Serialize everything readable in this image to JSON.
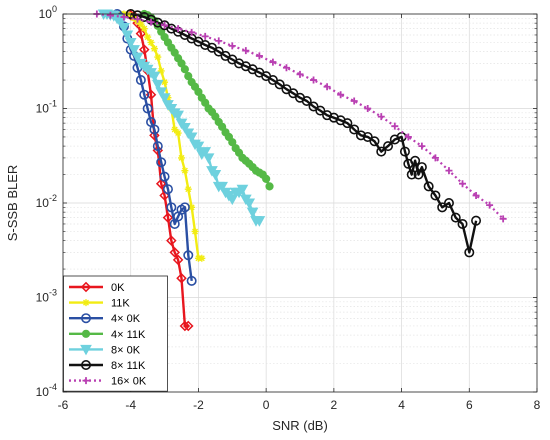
{
  "chart_data": {
    "type": "line",
    "xlabel": "SNR (dB)",
    "ylabel": "S-SSB BLER",
    "xlim": [
      -6,
      8
    ],
    "ylim": [
      0.0001,
      1
    ],
    "y_scale": "log",
    "grid": true,
    "legend_location": "bottom-left",
    "x_ticks": [
      "-6",
      "-4",
      "-2",
      "0",
      "2",
      "4",
      "6",
      "8"
    ],
    "y_ticks": [
      {
        "value": 1,
        "label": "10^0"
      },
      {
        "value": 0.1,
        "label": "10^-1"
      },
      {
        "value": 0.01,
        "label": "10^-2"
      },
      {
        "value": 0.001,
        "label": "10^-3"
      },
      {
        "value": 0.0001,
        "label": "10^-4"
      }
    ],
    "series": [
      {
        "name": "0K",
        "color": "#e8161e",
        "marker": "diamond",
        "dashed": false,
        "x": [
          -4.0,
          -3.9,
          -3.8,
          -3.7,
          -3.6,
          -3.5,
          -3.4,
          -3.3,
          -3.2,
          -3.1,
          -3.0,
          -2.9,
          -2.8,
          -2.7,
          -2.6,
          -2.5,
          -2.4,
          -2.3
        ],
        "y": [
          0.97,
          0.95,
          0.8,
          0.62,
          0.42,
          0.25,
          0.14,
          0.052,
          0.036,
          0.016,
          0.012,
          0.007,
          0.004,
          0.003,
          0.0025,
          0.0016,
          0.0005,
          0.0005
        ]
      },
      {
        "name": "11K",
        "color": "#f2ec12",
        "marker": "asterisk",
        "dashed": false,
        "x": [
          -4.3,
          -4.2,
          -4.1,
          -4.0,
          -3.9,
          -3.8,
          -3.7,
          -3.6,
          -3.5,
          -3.4,
          -3.3,
          -3.2,
          -3.1,
          -3.0,
          -2.9,
          -2.8,
          -2.7,
          -2.6,
          -2.5,
          -2.4,
          -2.3,
          -2.2,
          -2.1,
          -2.0,
          -1.9
        ],
        "y": [
          1,
          1,
          0.98,
          0.96,
          0.9,
          0.84,
          0.78,
          0.7,
          0.57,
          0.5,
          0.43,
          0.35,
          0.25,
          0.19,
          0.13,
          0.1,
          0.06,
          0.055,
          0.03,
          0.022,
          0.014,
          0.009,
          0.005,
          0.0026,
          0.0026
        ]
      },
      {
        "name": "4× 0K",
        "color": "#2a4fa3",
        "marker": "circle",
        "dashed": false,
        "x": [
          -4.4,
          -4.3,
          -4.2,
          -4.1,
          -4.0,
          -3.9,
          -3.8,
          -3.7,
          -3.6,
          -3.5,
          -3.4,
          -3.3,
          -3.2,
          -3.1,
          -3.0,
          -2.9,
          -2.8,
          -2.7,
          -2.6,
          -2.5,
          -2.4,
          -2.3,
          -2.2
        ],
        "y": [
          1,
          0.92,
          0.74,
          0.55,
          0.42,
          0.36,
          0.27,
          0.2,
          0.14,
          0.1,
          0.072,
          0.06,
          0.04,
          0.027,
          0.019,
          0.014,
          0.009,
          0.006,
          0.0072,
          0.0085,
          0.009,
          0.0028,
          0.0015
        ]
      },
      {
        "name": "4× 11K",
        "color": "#55b946",
        "marker": "dot",
        "dashed": false,
        "x": [
          -3.6,
          -3.5,
          -3.4,
          -3.3,
          -3.2,
          -3.1,
          -3.0,
          -2.9,
          -2.8,
          -2.7,
          -2.6,
          -2.5,
          -2.4,
          -2.3,
          -2.2,
          -2.1,
          -2.0,
          -1.9,
          -1.8,
          -1.7,
          -1.6,
          -1.5,
          -1.4,
          -1.3,
          -1.2,
          -1.1,
          -1.0,
          -0.9,
          -0.8,
          -0.7,
          -0.6,
          -0.5,
          -0.4,
          -0.3,
          -0.2,
          -0.1,
          0.0,
          0.1
        ],
        "y": [
          1,
          0.97,
          0.92,
          0.85,
          0.75,
          0.65,
          0.57,
          0.5,
          0.44,
          0.39,
          0.34,
          0.3,
          0.26,
          0.22,
          0.19,
          0.17,
          0.15,
          0.13,
          0.115,
          0.1,
          0.092,
          0.082,
          0.072,
          0.064,
          0.056,
          0.05,
          0.044,
          0.038,
          0.034,
          0.03,
          0.028,
          0.026,
          0.024,
          0.022,
          0.021,
          0.02,
          0.018,
          0.015
        ]
      },
      {
        "name": "8× 0K",
        "color": "#6ed1de",
        "marker": "triangle-down",
        "dashed": false,
        "x": [
          -4.8,
          -4.7,
          -4.6,
          -4.5,
          -4.4,
          -4.3,
          -4.2,
          -4.1,
          -4.0,
          -3.9,
          -3.8,
          -3.7,
          -3.6,
          -3.5,
          -3.4,
          -3.3,
          -3.2,
          -3.1,
          -3.0,
          -2.9,
          -2.8,
          -2.7,
          -2.6,
          -2.5,
          -2.4,
          -2.3,
          -2.2,
          -2.1,
          -2.0,
          -1.9,
          -1.8,
          -1.7,
          -1.6,
          -1.5,
          -1.4,
          -1.3,
          -1.2,
          -1.1,
          -1.0,
          -0.9,
          -0.8,
          -0.7,
          -0.6,
          -0.5,
          -0.4,
          -0.3,
          -0.2
        ],
        "y": [
          1,
          1,
          0.98,
          0.96,
          0.9,
          0.82,
          0.72,
          0.6,
          0.5,
          0.42,
          0.35,
          0.3,
          0.28,
          0.26,
          0.24,
          0.22,
          0.18,
          0.15,
          0.13,
          0.11,
          0.1,
          0.09,
          0.085,
          0.07,
          0.063,
          0.055,
          0.05,
          0.042,
          0.04,
          0.033,
          0.035,
          0.03,
          0.022,
          0.02,
          0.015,
          0.015,
          0.013,
          0.012,
          0.011,
          0.013,
          0.013,
          0.014,
          0.011,
          0.01,
          0.008,
          0.0065,
          0.0065
        ]
      },
      {
        "name": "8× 11K",
        "color": "#111111",
        "marker": "circle",
        "dashed": false,
        "x": [
          -4.0,
          -3.8,
          -3.6,
          -3.4,
          -3.2,
          -3.0,
          -2.8,
          -2.6,
          -2.4,
          -2.2,
          -2.0,
          -1.8,
          -1.6,
          -1.4,
          -1.2,
          -1.0,
          -0.8,
          -0.6,
          -0.4,
          -0.2,
          0.0,
          0.2,
          0.4,
          0.6,
          0.8,
          1.0,
          1.2,
          1.4,
          1.6,
          1.8,
          2.0,
          2.2,
          2.4,
          2.6,
          2.8,
          3.0,
          3.2,
          3.4,
          3.6,
          3.8,
          4.0,
          4.1,
          4.2,
          4.3,
          4.4,
          4.5,
          4.6,
          4.8,
          5.0,
          5.2,
          5.4,
          5.6,
          5.8,
          6.0,
          6.2
        ],
        "y": [
          1.0,
          0.97,
          0.93,
          0.87,
          0.81,
          0.76,
          0.7,
          0.65,
          0.6,
          0.55,
          0.51,
          0.47,
          0.44,
          0.4,
          0.36,
          0.33,
          0.3,
          0.28,
          0.26,
          0.24,
          0.22,
          0.2,
          0.18,
          0.16,
          0.145,
          0.13,
          0.12,
          0.105,
          0.095,
          0.085,
          0.08,
          0.075,
          0.07,
          0.06,
          0.052,
          0.05,
          0.045,
          0.035,
          0.04,
          0.047,
          0.05,
          0.035,
          0.026,
          0.02,
          0.028,
          0.02,
          0.024,
          0.015,
          0.012,
          0.009,
          0.01,
          0.007,
          0.006,
          0.003,
          0.0065
        ]
      },
      {
        "name": "16× 0K",
        "color": "#b93fb2",
        "marker": "plus",
        "dashed": true,
        "x": [
          -5.0,
          -4.6,
          -4.2,
          -3.8,
          -3.4,
          -3.0,
          -2.6,
          -2.2,
          -1.8,
          -1.4,
          -1.0,
          -0.6,
          -0.2,
          0.2,
          0.6,
          1.0,
          1.4,
          1.8,
          2.2,
          2.6,
          3.0,
          3.4,
          3.8,
          4.2,
          4.6,
          5.0,
          5.4,
          5.8,
          6.2,
          6.6,
          7.0
        ],
        "y": [
          1,
          0.97,
          0.93,
          0.88,
          0.82,
          0.76,
          0.7,
          0.64,
          0.58,
          0.52,
          0.46,
          0.41,
          0.36,
          0.31,
          0.27,
          0.23,
          0.2,
          0.17,
          0.14,
          0.12,
          0.1,
          0.082,
          0.065,
          0.05,
          0.04,
          0.03,
          0.022,
          0.016,
          0.012,
          0.0095,
          0.0068
        ]
      }
    ]
  }
}
